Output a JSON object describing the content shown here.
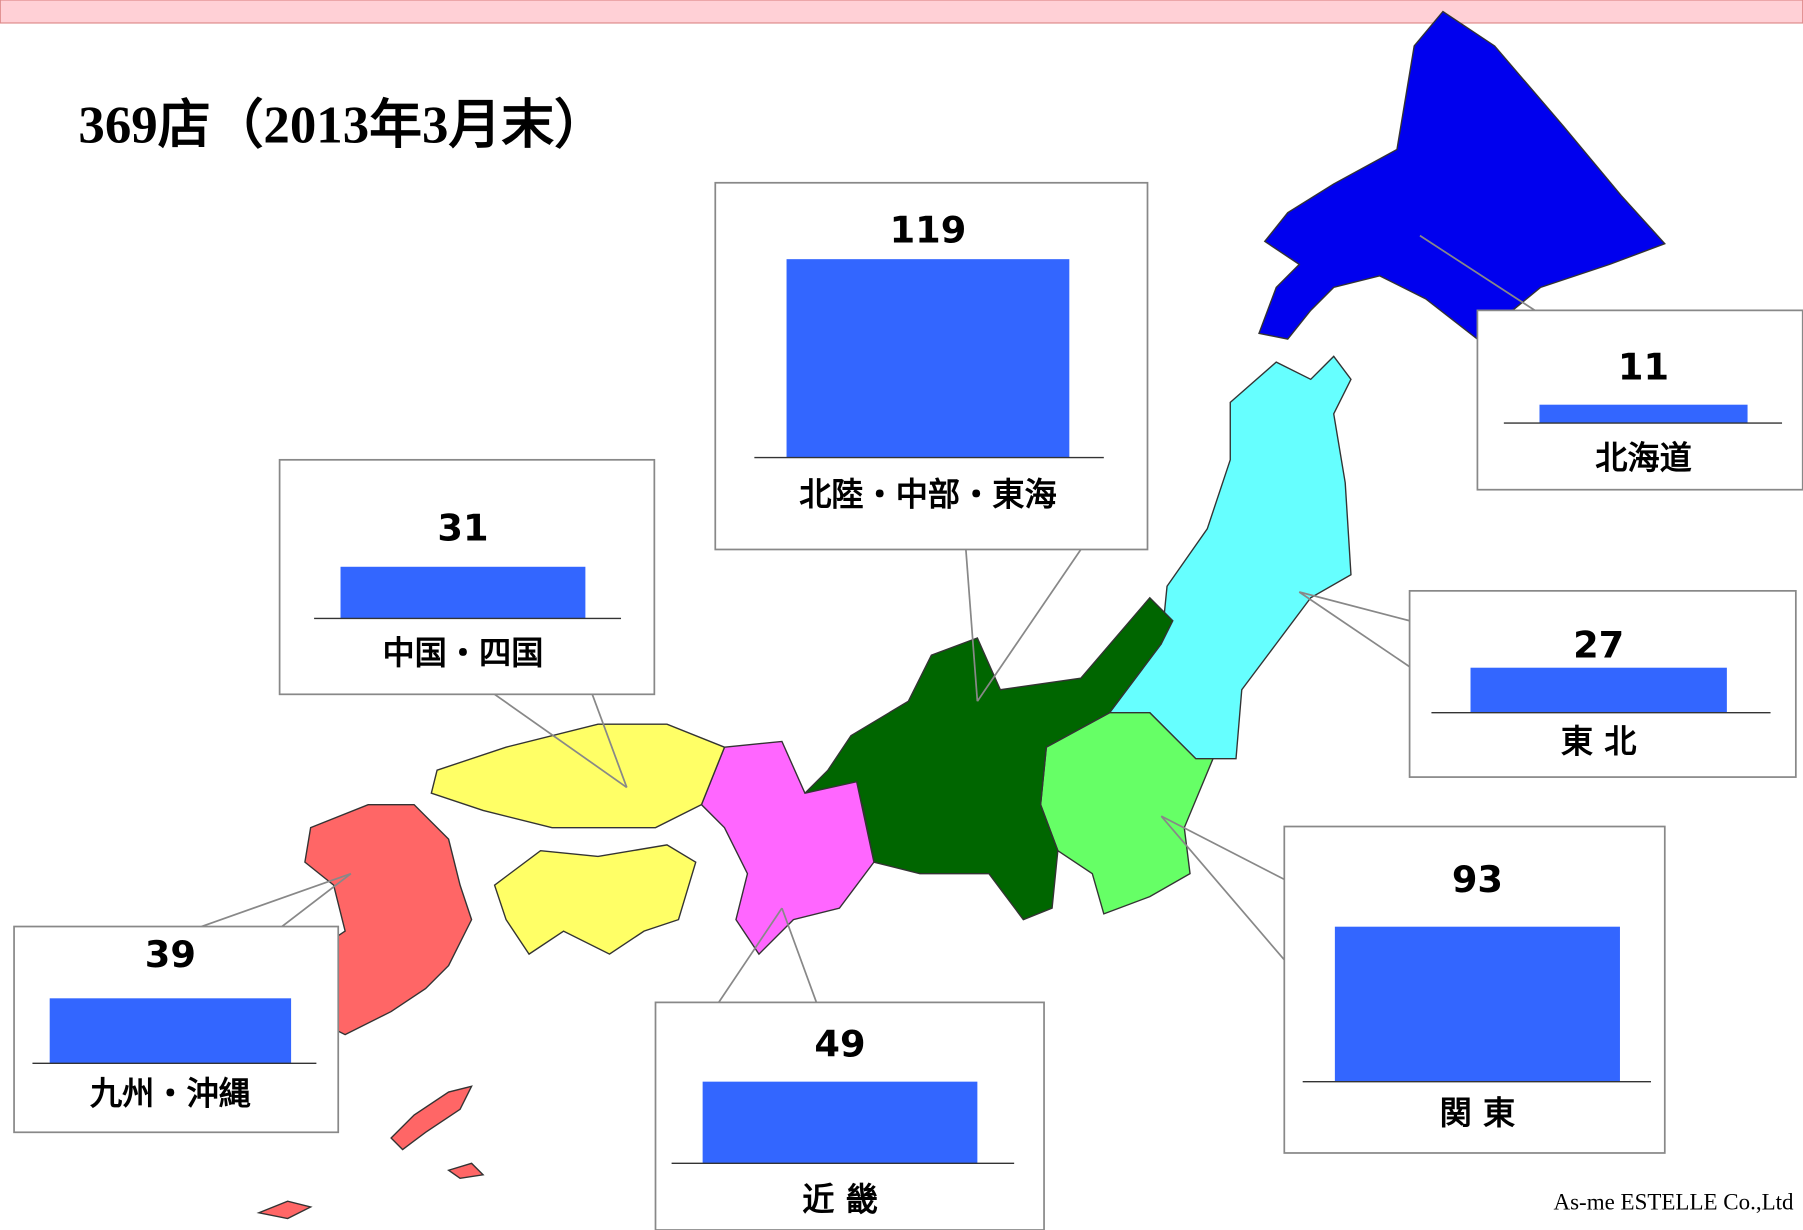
{
  "title": "369店（2013年3月末）",
  "regions": [
    {
      "name": "北海道",
      "value": 11
    },
    {
      "name": "東 北",
      "value": 27
    },
    {
      "name": "関 東",
      "value": 93
    },
    {
      "name": "北陸・中部・東海",
      "value": 119
    },
    {
      "name": "近 畿",
      "value": 49
    },
    {
      "name": "中国・四国",
      "value": 31
    },
    {
      "name": "九州・沖縄",
      "value": 39
    }
  ],
  "footer": "As-me ESTELLE Co.,Ltd"
}
